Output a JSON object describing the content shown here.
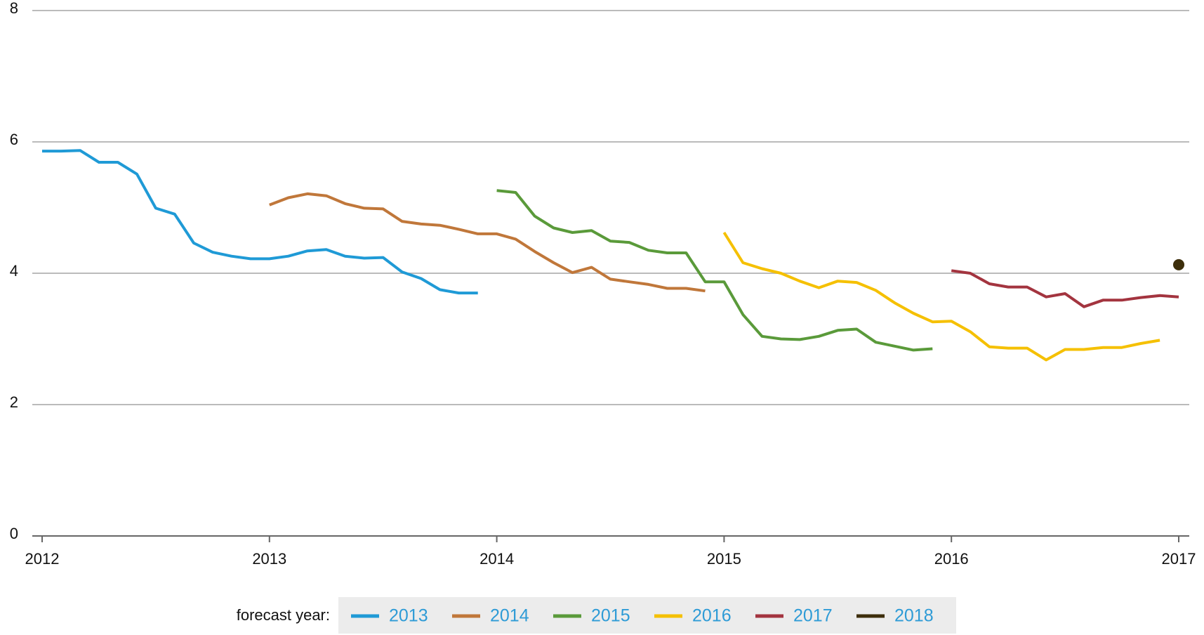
{
  "chart_data": {
    "type": "line",
    "legend_title": "forecast year:",
    "xlim": [
      2012,
      2017
    ],
    "xticks": [
      2012,
      2013,
      2014,
      2015,
      2016,
      2017
    ],
    "ylim": [
      0,
      8
    ],
    "yticks": [
      0,
      2,
      4,
      6,
      8
    ],
    "grid": true,
    "series": [
      {
        "name": "2013",
        "color": "#1f9ad6",
        "x": [
          2012,
          2012.083,
          2012.167,
          2012.25,
          2012.333,
          2012.417,
          2012.5,
          2012.583,
          2012.667,
          2012.75,
          2012.833,
          2012.917,
          2013,
          2013.083,
          2013.167,
          2013.25,
          2013.333,
          2013.417,
          2013.5,
          2013.583,
          2013.667,
          2013.75,
          2013.833,
          2013.917
        ],
        "values": [
          5.86,
          5.86,
          5.87,
          5.69,
          5.69,
          5.51,
          4.99,
          4.9,
          4.46,
          4.32,
          4.26,
          4.22,
          4.22,
          4.26,
          4.34,
          4.36,
          4.26,
          4.23,
          4.24,
          4.02,
          3.92,
          3.75,
          3.7,
          3.7
        ]
      },
      {
        "name": "2014",
        "color": "#c0773a",
        "x": [
          2013,
          2013.083,
          2013.167,
          2013.25,
          2013.333,
          2013.417,
          2013.5,
          2013.583,
          2013.667,
          2013.75,
          2013.833,
          2013.917,
          2014,
          2014.083,
          2014.167,
          2014.25,
          2014.333,
          2014.417,
          2014.5,
          2014.583,
          2014.667,
          2014.75,
          2014.833,
          2014.917
        ],
        "values": [
          5.04,
          5.15,
          5.21,
          5.18,
          5.06,
          4.99,
          4.98,
          4.79,
          4.75,
          4.73,
          4.67,
          4.6,
          4.6,
          4.52,
          4.33,
          4.16,
          4.01,
          4.09,
          3.91,
          3.87,
          3.83,
          3.77,
          3.77,
          3.73
        ]
      },
      {
        "name": "2015",
        "color": "#5a9a3a",
        "x": [
          2014,
          2014.083,
          2014.167,
          2014.25,
          2014.333,
          2014.417,
          2014.5,
          2014.583,
          2014.667,
          2014.75,
          2014.833,
          2014.917,
          2015,
          2015.083,
          2015.167,
          2015.25,
          2015.333,
          2015.417,
          2015.5,
          2015.583,
          2015.667,
          2015.75,
          2015.833,
          2015.917
        ],
        "values": [
          5.26,
          5.23,
          4.87,
          4.69,
          4.62,
          4.65,
          4.49,
          4.47,
          4.35,
          4.31,
          4.31,
          3.87,
          3.87,
          3.37,
          3.04,
          3.0,
          2.99,
          3.04,
          3.13,
          3.15,
          2.95,
          2.89,
          2.83,
          2.85
        ]
      },
      {
        "name": "2016",
        "color": "#f5c000",
        "x": [
          2015,
          2015.083,
          2015.167,
          2015.25,
          2015.333,
          2015.417,
          2015.5,
          2015.583,
          2015.667,
          2015.75,
          2015.833,
          2015.917,
          2016,
          2016.083,
          2016.167,
          2016.25,
          2016.333,
          2016.417,
          2016.5,
          2016.583,
          2016.667,
          2016.75,
          2016.833,
          2016.917
        ],
        "values": [
          4.62,
          4.16,
          4.07,
          4.0,
          3.88,
          3.78,
          3.88,
          3.86,
          3.74,
          3.55,
          3.39,
          3.26,
          3.27,
          3.11,
          2.88,
          2.86,
          2.86,
          2.68,
          2.84,
          2.84,
          2.87,
          2.87,
          2.93,
          2.98
        ]
      },
      {
        "name": "2017",
        "color": "#a3343f",
        "x": [
          2016,
          2016.083,
          2016.167,
          2016.25,
          2016.333,
          2016.417,
          2016.5,
          2016.583,
          2016.667,
          2016.75,
          2016.833,
          2016.917,
          2017
        ],
        "values": [
          4.04,
          4.0,
          3.84,
          3.79,
          3.79,
          3.64,
          3.69,
          3.49,
          3.59,
          3.59,
          3.63,
          3.66,
          3.64
        ]
      },
      {
        "name": "2018",
        "color": "#3d2e0b",
        "x": [
          2017
        ],
        "values": [
          4.13
        ]
      }
    ]
  }
}
